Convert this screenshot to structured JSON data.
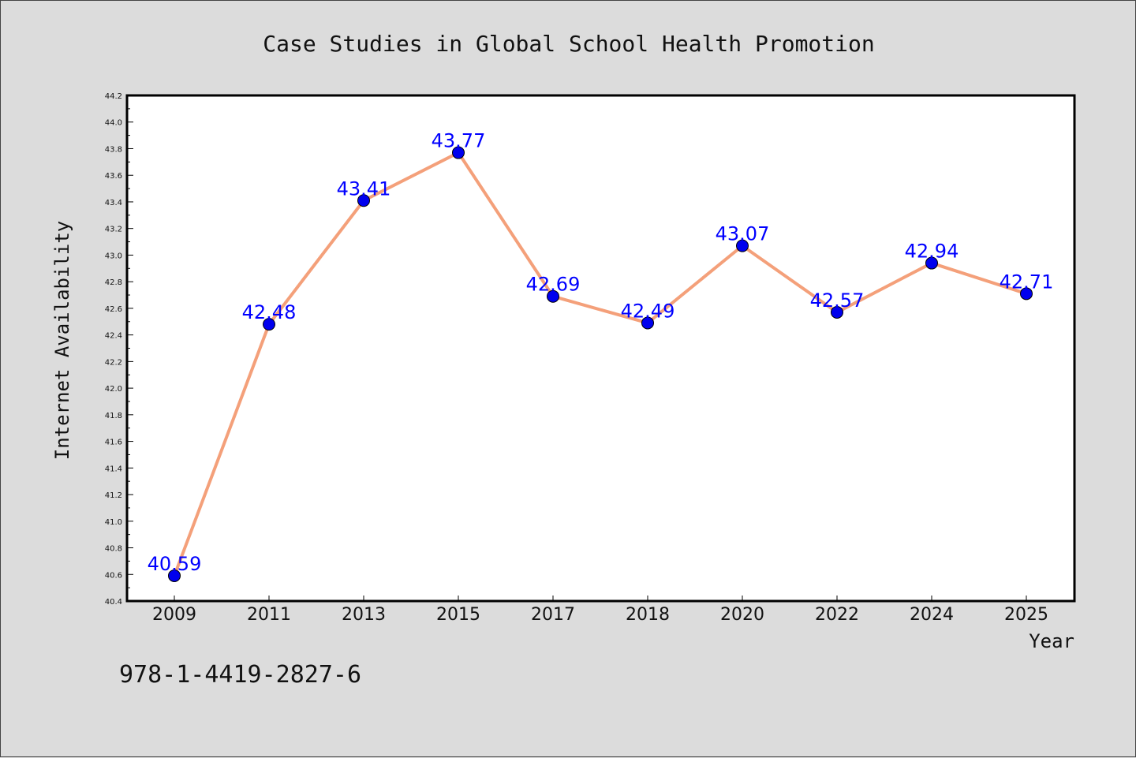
{
  "chart_data": {
    "type": "line",
    "title": "Case Studies in Global School Health Promotion",
    "xlabel": "Year",
    "ylabel": "Internet Availability",
    "categories": [
      "2009",
      "2011",
      "2013",
      "2015",
      "2017",
      "2018",
      "2020",
      "2022",
      "2024",
      "2025"
    ],
    "series": [
      {
        "values": [
          40.59,
          42.48,
          43.41,
          43.77,
          42.69,
          42.49,
          43.07,
          42.57,
          42.94,
          42.71
        ],
        "data_labels": [
          "40.59",
          "42.48",
          "43.41",
          "43.77",
          "42.69",
          "42.49",
          "43.07",
          "42.57",
          "42.94",
          "42.71"
        ],
        "line_color": "#f4a07a",
        "marker_color": "#0000ee"
      }
    ],
    "ylim": [
      40.4,
      44.2
    ],
    "yticks": [
      "40.4",
      "40.6",
      "40.8",
      "41.0",
      "41.2",
      "41.4",
      "41.6",
      "41.8",
      "42.0",
      "42.2",
      "42.4",
      "42.6",
      "42.8",
      "43.0",
      "43.2",
      "43.4",
      "43.6",
      "43.8",
      "44.0",
      "44.2"
    ],
    "label_color": "#0000ff",
    "grid": false,
    "legend": "none"
  },
  "footer": {
    "isbn": "978-1-4419-2827-6"
  }
}
